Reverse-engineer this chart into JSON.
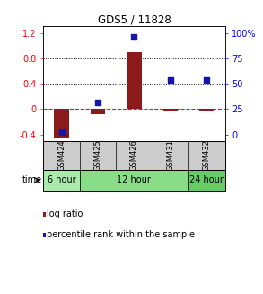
{
  "title": "GDS5 / 11828",
  "samples": [
    "GSM424",
    "GSM425",
    "GSM426",
    "GSM431",
    "GSM432"
  ],
  "log_ratio": [
    -0.45,
    -0.08,
    0.9,
    -0.02,
    -0.02
  ],
  "percentile_rank_pct": [
    2.5,
    32,
    96,
    54,
    54
  ],
  "ylim_left": [
    -0.5,
    1.3
  ],
  "left_ticks": [
    -0.4,
    0.0,
    0.4,
    0.8,
    1.2
  ],
  "left_tick_labels": [
    "-0.4",
    "0",
    "0.4",
    "0.8",
    "1.2"
  ],
  "right_ticks": [
    0,
    25,
    50,
    75,
    100
  ],
  "right_tick_labels": [
    "0",
    "25",
    "50",
    "75",
    "100%"
  ],
  "dotted_hlines": [
    0.4,
    0.8
  ],
  "dashed_hline_y": 0.0,
  "bar_color": "#8b1a1a",
  "scatter_color": "#1515aa",
  "time_groups": [
    {
      "label": "6 hour",
      "start": 0,
      "end": 1,
      "color": "#aaeaaa"
    },
    {
      "label": "12 hour",
      "start": 1,
      "end": 4,
      "color": "#88dd88"
    },
    {
      "label": "24 hour",
      "start": 4,
      "end": 5,
      "color": "#66cc66"
    }
  ],
  "sample_row_color": "#cccccc",
  "bg_color": "#ffffff"
}
